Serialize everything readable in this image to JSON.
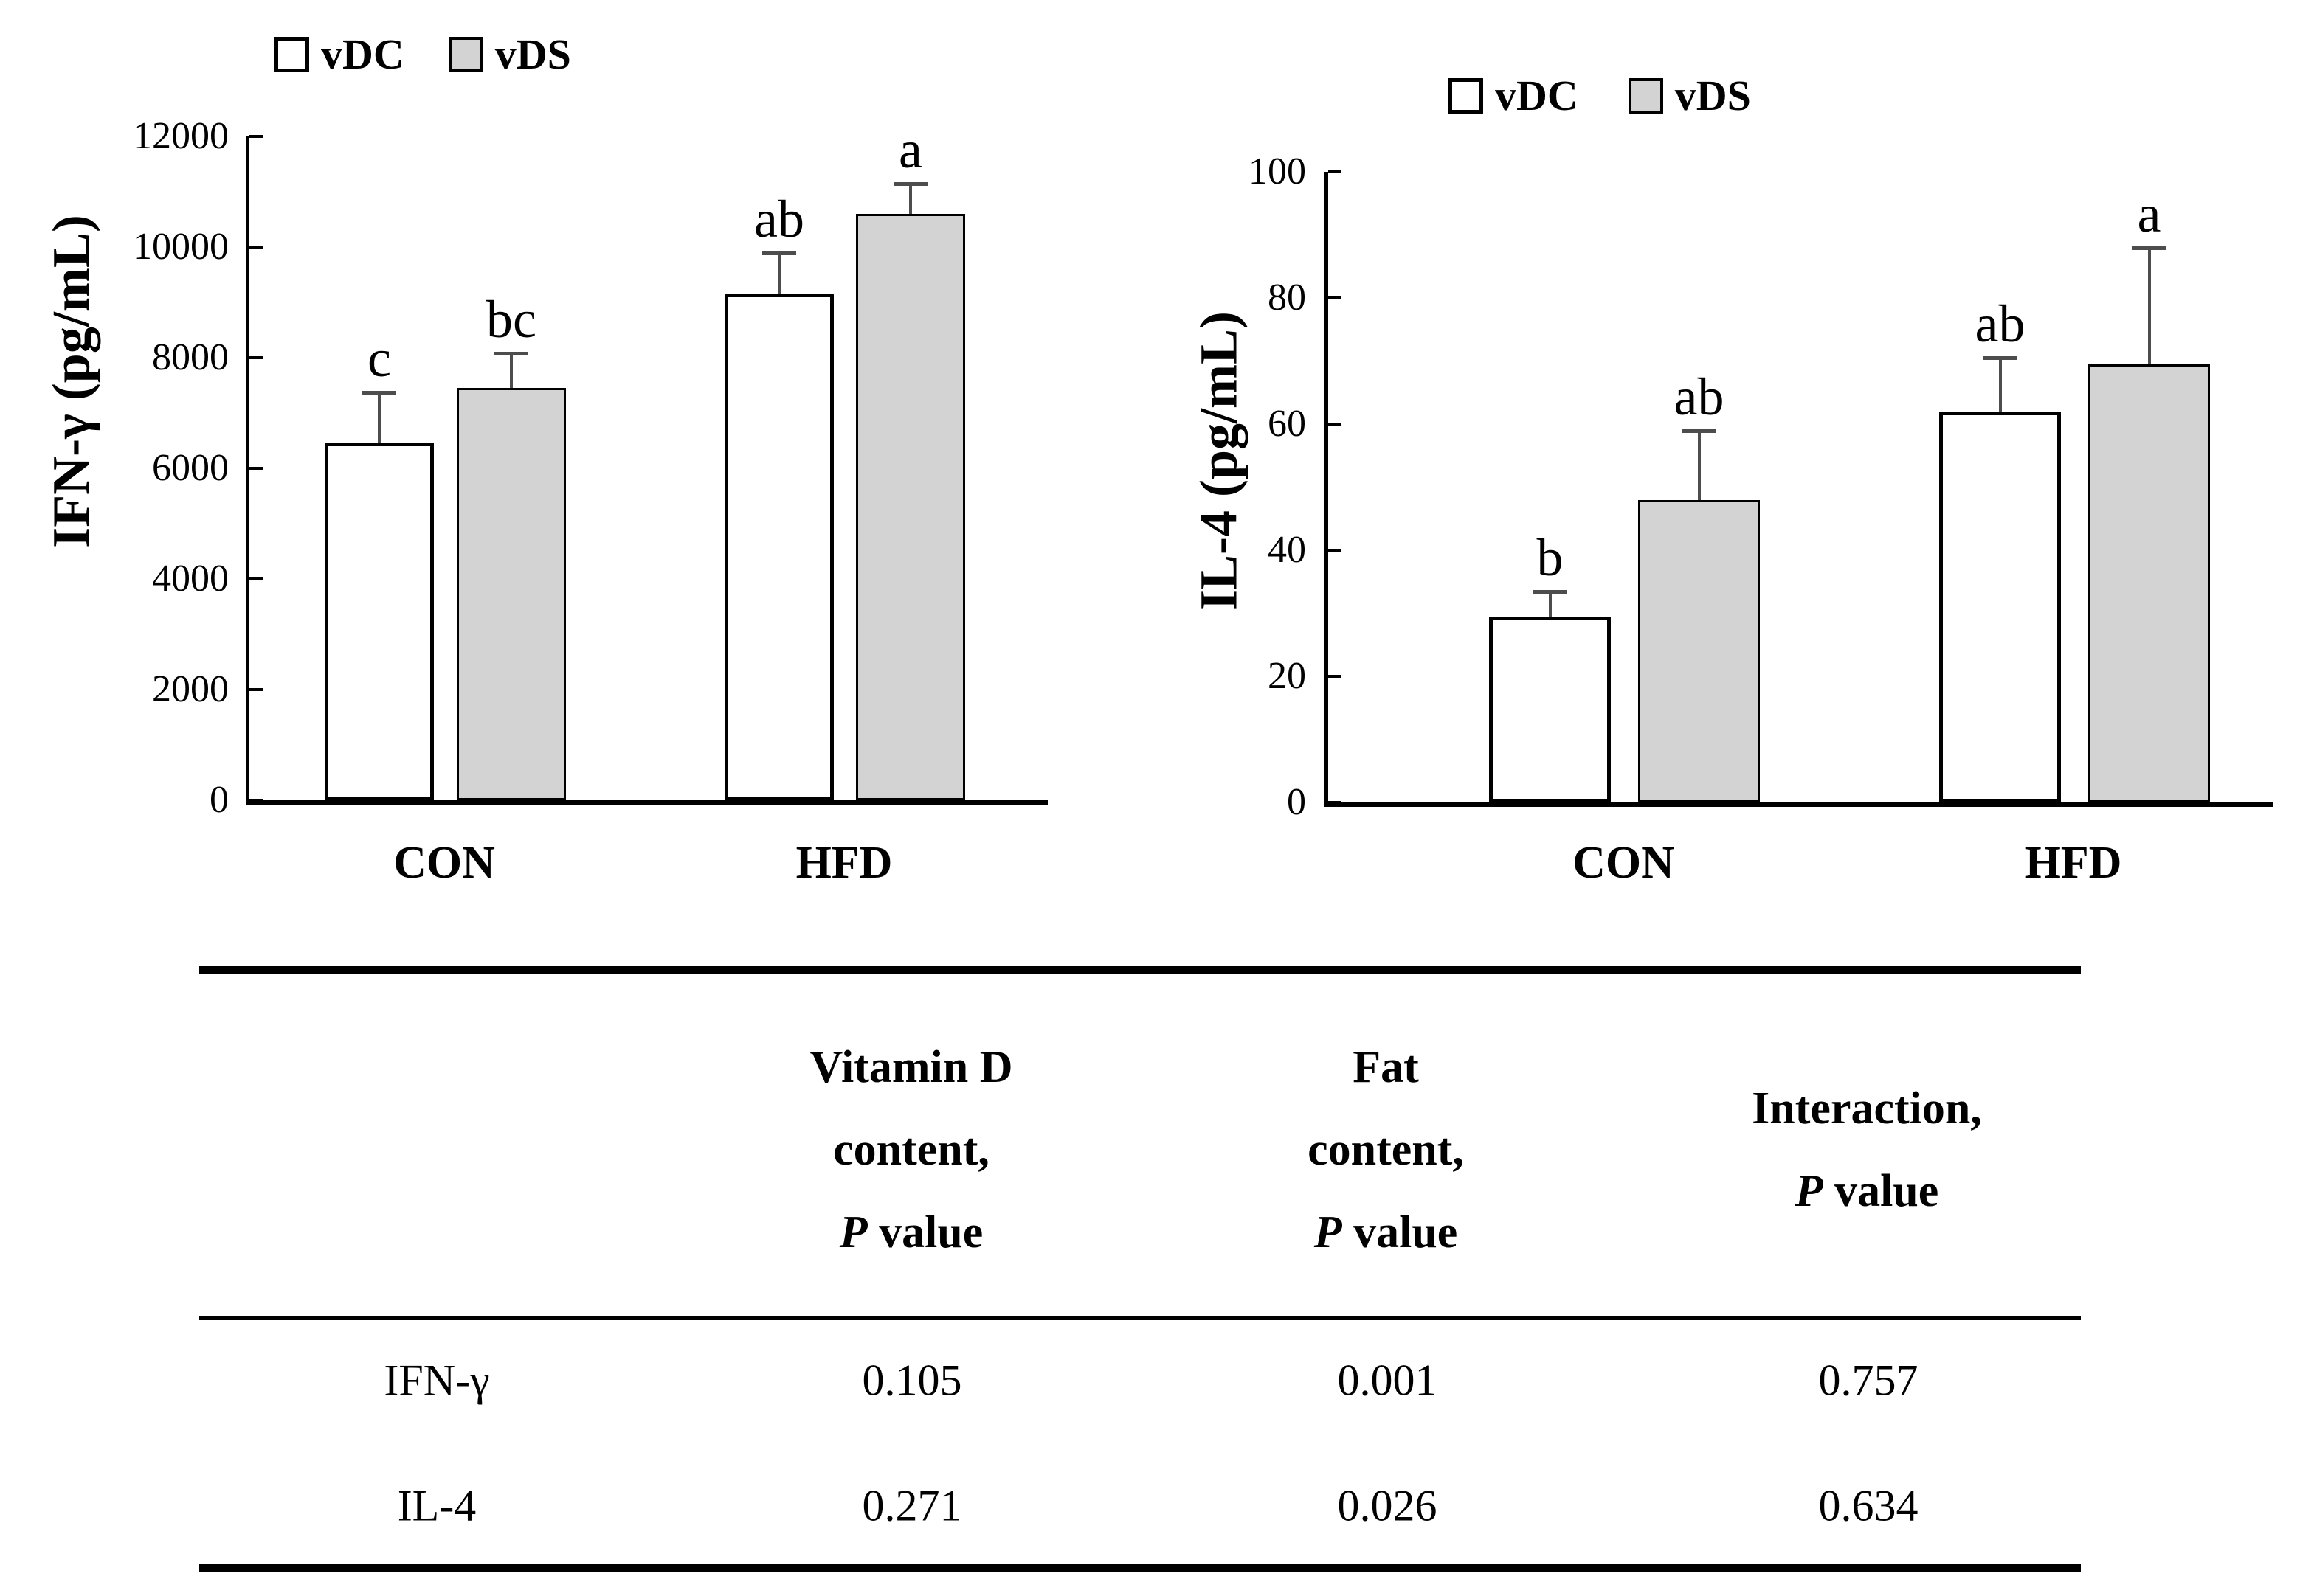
{
  "colors": {
    "bar_white": "#ffffff",
    "bar_gray": "#d3d3d3",
    "bar_border": "#000000",
    "error_bar": "#4d4d4d",
    "text": "#000000"
  },
  "chart_data": [
    {
      "type": "bar",
      "title": "",
      "ylabel": "IFN-γ (pg/mL)",
      "xlabel": "",
      "ylim": [
        0,
        12000
      ],
      "y_ticks": [
        "0",
        "2000",
        "4000",
        "6000",
        "8000",
        "10000",
        "12000"
      ],
      "grid": false,
      "legend_position": "top",
      "legend": [
        "vDC",
        "vDS"
      ],
      "categories": [
        "CON",
        "HFD"
      ],
      "series": [
        {
          "name": "vDC",
          "values": [
            6470,
            9160
          ],
          "errors": [
            900,
            740
          ],
          "letters": [
            "c",
            "ab"
          ]
        },
        {
          "name": "vDS",
          "values": [
            7450,
            10600
          ],
          "errors": [
            630,
            550
          ],
          "letters": [
            "bc",
            "a"
          ]
        }
      ]
    },
    {
      "type": "bar",
      "title": "",
      "ylabel": "IL-4 (pg/mL)",
      "xlabel": "",
      "ylim": [
        0,
        100
      ],
      "y_ticks": [
        "0",
        "20",
        "40",
        "60",
        "80",
        "100"
      ],
      "grid": false,
      "legend_position": "top",
      "legend": [
        "vDC",
        "vDS"
      ],
      "categories": [
        "CON",
        "HFD"
      ],
      "series": [
        {
          "name": "vDC",
          "values": [
            29.5,
            62
          ],
          "errors": [
            4,
            8.5
          ],
          "letters": [
            "b",
            "ab"
          ]
        },
        {
          "name": "vDS",
          "values": [
            48,
            69.5
          ],
          "errors": [
            11,
            18.5
          ],
          "letters": [
            "ab",
            "a"
          ]
        }
      ]
    }
  ],
  "table": {
    "columns": [
      {
        "line1": "Vitamin D",
        "line2": "content,",
        "p_label": "P",
        "p_rest": " value"
      },
      {
        "line1": "Fat",
        "line2": "content,",
        "p_label": "P",
        "p_rest": " value"
      },
      {
        "line1": "Interaction,",
        "p_label": "P",
        "p_rest": " value"
      }
    ],
    "rows": [
      {
        "label": "IFN-γ",
        "values": [
          "0.105",
          "0.001",
          "0.757"
        ]
      },
      {
        "label": "IL-4",
        "values": [
          "0.271",
          "0.026",
          "0.634"
        ]
      }
    ]
  }
}
